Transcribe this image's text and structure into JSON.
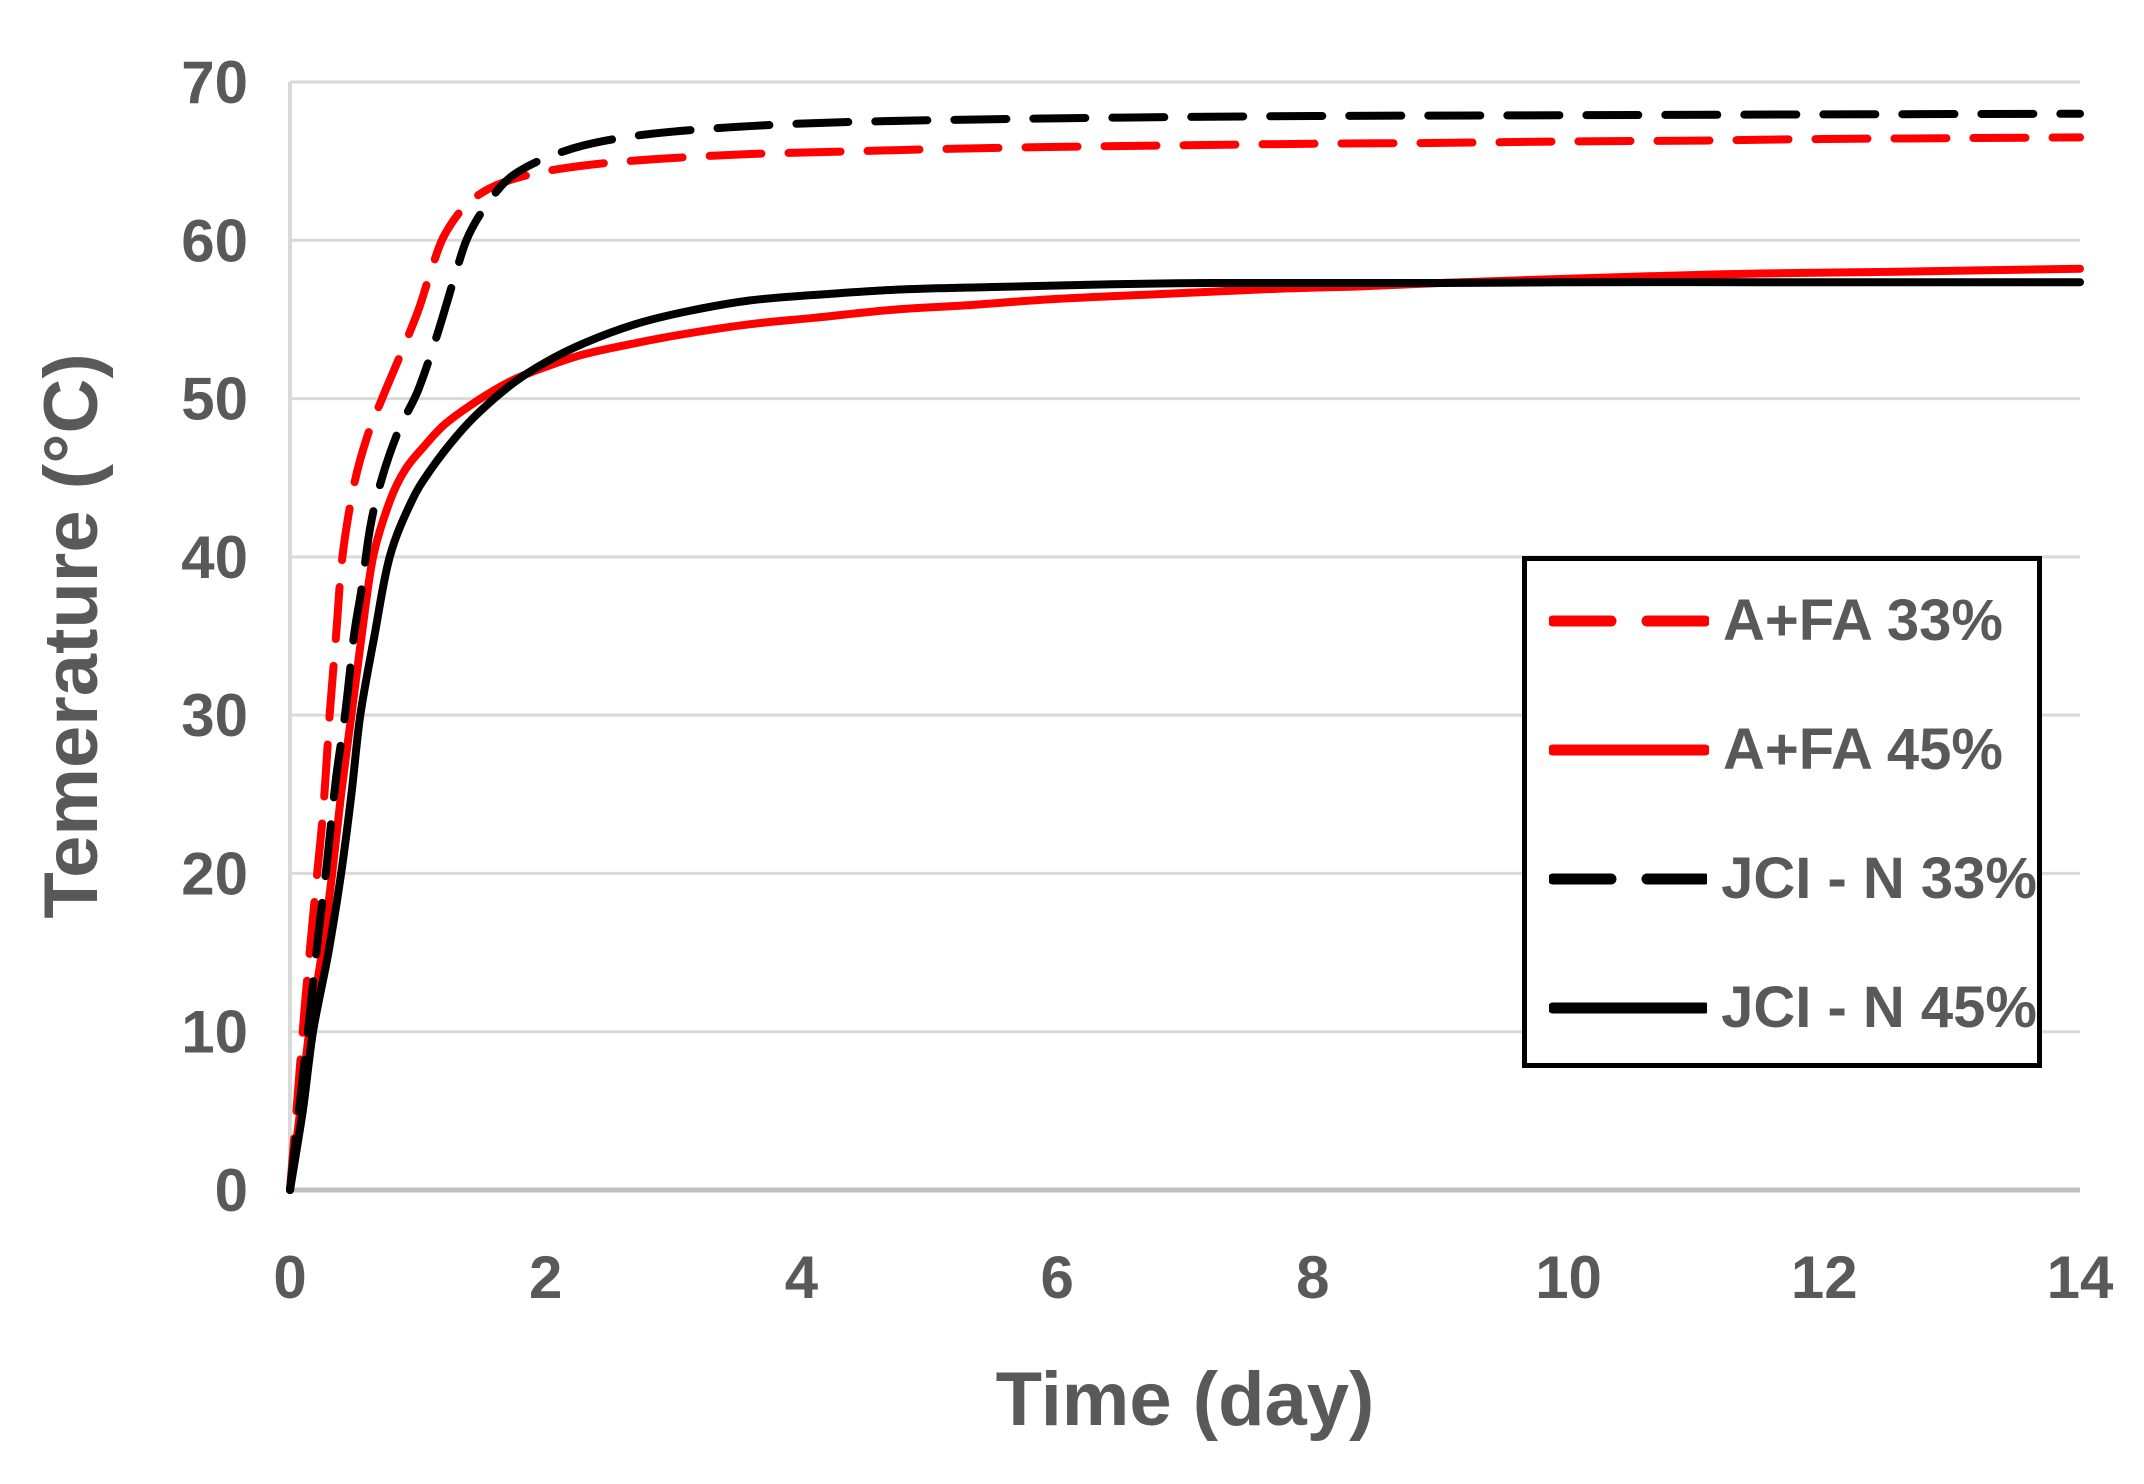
{
  "chart_data": {
    "type": "line",
    "title": "",
    "xlabel": "Time (day)",
    "ylabel": "Temerature (°C)",
    "xlim": [
      0,
      14
    ],
    "ylim": [
      0,
      70
    ],
    "x_ticks": [
      0,
      2,
      4,
      6,
      8,
      10,
      12,
      14
    ],
    "y_ticks": [
      0,
      10,
      20,
      30,
      40,
      50,
      60,
      70
    ],
    "grid": "horizontal-only",
    "grid_color": "#d9d9d9",
    "axis_color": "#bfbfbf",
    "text_color": "#595959",
    "legend_position": "inside-right",
    "legend_border_color": "#000000",
    "series": [
      {
        "name": "A+FA 33%",
        "color": "#ff0000",
        "style": "dashed",
        "points": [
          [
            0,
            0
          ],
          [
            0.06,
            6
          ],
          [
            0.12,
            12
          ],
          [
            0.2,
            19
          ],
          [
            0.26,
            24
          ],
          [
            0.31,
            30
          ],
          [
            0.36,
            35
          ],
          [
            0.41,
            40
          ],
          [
            0.5,
            44.5
          ],
          [
            0.6,
            47.5
          ],
          [
            0.72,
            50
          ],
          [
            0.85,
            52.5
          ],
          [
            1.0,
            55.5
          ],
          [
            1.1,
            58
          ],
          [
            1.2,
            60.2
          ],
          [
            1.35,
            62
          ],
          [
            1.5,
            63
          ],
          [
            1.65,
            63.6
          ],
          [
            1.85,
            64.1
          ],
          [
            2.1,
            64.5
          ],
          [
            2.5,
            64.9
          ],
          [
            3.0,
            65.2
          ],
          [
            3.6,
            65.45
          ],
          [
            4.3,
            65.6
          ],
          [
            5.0,
            65.75
          ],
          [
            6.0,
            65.9
          ],
          [
            7.0,
            66.0
          ],
          [
            8.0,
            66.1
          ],
          [
            9.0,
            66.15
          ],
          [
            10.0,
            66.25
          ],
          [
            11.0,
            66.3
          ],
          [
            12.0,
            66.4
          ],
          [
            13.0,
            66.45
          ],
          [
            14.0,
            66.5
          ]
        ]
      },
      {
        "name": "A+FA 45%",
        "color": "#ff0000",
        "style": "solid",
        "points": [
          [
            0,
            0
          ],
          [
            0.08,
            5
          ],
          [
            0.15,
            10
          ],
          [
            0.25,
            15
          ],
          [
            0.33,
            20
          ],
          [
            0.4,
            25
          ],
          [
            0.48,
            30
          ],
          [
            0.56,
            35
          ],
          [
            0.65,
            40
          ],
          [
            0.78,
            43.5
          ],
          [
            0.9,
            45.5
          ],
          [
            1.05,
            47
          ],
          [
            1.2,
            48.3
          ],
          [
            1.38,
            49.4
          ],
          [
            1.55,
            50.3
          ],
          [
            1.75,
            51.2
          ],
          [
            2.0,
            52
          ],
          [
            2.3,
            52.8
          ],
          [
            2.7,
            53.5
          ],
          [
            3.1,
            54.1
          ],
          [
            3.6,
            54.7
          ],
          [
            4.1,
            55.1
          ],
          [
            4.7,
            55.6
          ],
          [
            5.3,
            55.9
          ],
          [
            6.0,
            56.3
          ],
          [
            6.8,
            56.6
          ],
          [
            7.6,
            56.9
          ],
          [
            8.4,
            57.1
          ],
          [
            9.0,
            57.3
          ],
          [
            9.7,
            57.5
          ],
          [
            10.5,
            57.7
          ],
          [
            11.5,
            57.9
          ],
          [
            12.5,
            58.0
          ],
          [
            13.2,
            58.1
          ],
          [
            14,
            58.2
          ]
        ]
      },
      {
        "name": "JCI - N 33%",
        "color": "#000000",
        "style": "dashed",
        "points": [
          [
            0,
            0
          ],
          [
            0.07,
            5
          ],
          [
            0.14,
            10
          ],
          [
            0.22,
            16
          ],
          [
            0.28,
            20
          ],
          [
            0.36,
            26
          ],
          [
            0.43,
            30
          ],
          [
            0.5,
            35
          ],
          [
            0.56,
            38
          ],
          [
            0.63,
            42
          ],
          [
            0.72,
            45
          ],
          [
            0.85,
            48
          ],
          [
            1.0,
            50.5
          ],
          [
            1.15,
            54
          ],
          [
            1.28,
            57.5
          ],
          [
            1.38,
            60
          ],
          [
            1.5,
            61.8
          ],
          [
            1.66,
            63.5
          ],
          [
            1.8,
            64.4
          ],
          [
            2.0,
            65.2
          ],
          [
            2.3,
            66
          ],
          [
            2.7,
            66.6
          ],
          [
            3.2,
            67
          ],
          [
            3.8,
            67.3
          ],
          [
            4.5,
            67.5
          ],
          [
            5.5,
            67.65
          ],
          [
            6.5,
            67.75
          ],
          [
            8.0,
            67.85
          ],
          [
            10.0,
            67.9
          ],
          [
            12.0,
            67.95
          ],
          [
            14.0,
            68
          ]
        ]
      },
      {
        "name": "JCI - N 45%",
        "color": "#000000",
        "style": "solid",
        "points": [
          [
            0,
            0
          ],
          [
            0.1,
            5
          ],
          [
            0.18,
            10
          ],
          [
            0.3,
            15
          ],
          [
            0.4,
            20
          ],
          [
            0.48,
            25
          ],
          [
            0.55,
            30
          ],
          [
            0.66,
            35
          ],
          [
            0.78,
            40
          ],
          [
            0.95,
            43.5
          ],
          [
            1.1,
            45.5
          ],
          [
            1.3,
            47.6
          ],
          [
            1.5,
            49.3
          ],
          [
            1.75,
            51
          ],
          [
            2.0,
            52.3
          ],
          [
            2.3,
            53.5
          ],
          [
            2.7,
            54.7
          ],
          [
            3.1,
            55.5
          ],
          [
            3.6,
            56.2
          ],
          [
            4.2,
            56.6
          ],
          [
            4.8,
            56.9
          ],
          [
            5.5,
            57.05
          ],
          [
            6.3,
            57.2
          ],
          [
            7.2,
            57.3
          ],
          [
            9.0,
            57.3
          ],
          [
            10.0,
            57.35
          ],
          [
            11.5,
            57.35
          ],
          [
            13.0,
            57.35
          ],
          [
            14.0,
            57.35
          ]
        ]
      }
    ]
  }
}
